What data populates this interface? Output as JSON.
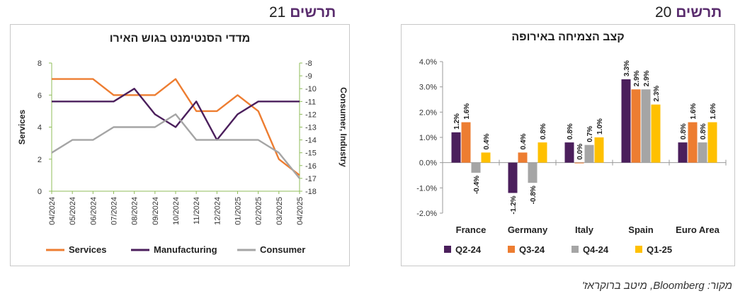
{
  "headers": {
    "left": {
      "label": "תרשים",
      "number": "21"
    },
    "right": {
      "label": "תרשים",
      "number": "20"
    }
  },
  "source": "מקור: Bloomberg, מיטב ברוקראז'",
  "colors": {
    "orange": "#ED7D31",
    "purple": "#4B1F5C",
    "gray": "#A5A5A5",
    "gold": "#FFC000",
    "axis": "#8FBC5A"
  },
  "chart_data": [
    {
      "type": "line",
      "title": "מדדי הסנטימנט בגוש האירו",
      "ylabel": "Services",
      "y2label": "Consumer, Industry",
      "x": [
        "04/2024",
        "05/2024",
        "06/2024",
        "07/2024",
        "08/2024",
        "09/2024",
        "10/2024",
        "11/2024",
        "12/2024",
        "01/2025",
        "02/2025",
        "03/2025",
        "04/2025"
      ],
      "ylim": [
        0,
        8
      ],
      "yticks": [
        "0",
        "2",
        "4",
        "6",
        "8"
      ],
      "y2lim": [
        -18,
        -8
      ],
      "y2ticks": [
        "-8",
        "-9",
        "-10",
        "-11",
        "-12",
        "-13",
        "-14",
        "-15",
        "-16",
        "-17",
        "-18"
      ],
      "legend": "bottom",
      "series": [
        {
          "name": "Services",
          "axis": "left",
          "color": "#ED7D31",
          "values": [
            7,
            7,
            7,
            6,
            6,
            6,
            7,
            5,
            5,
            6,
            5,
            2,
            1
          ]
        },
        {
          "name": "Manufacturing",
          "axis": "right",
          "color": "#4B1F5C",
          "values": [
            -11,
            -11,
            -11,
            -11,
            -10,
            -12,
            -13,
            -11,
            -14,
            -12,
            -11,
            -11,
            -11
          ]
        },
        {
          "name": "Consumer",
          "axis": "right",
          "color": "#A5A5A5",
          "values": [
            -15,
            -14,
            -14,
            -13,
            -13,
            -13,
            -12,
            -14,
            -14,
            -14,
            -14,
            -15,
            -17
          ]
        }
      ]
    },
    {
      "type": "bar",
      "title": "קצב הצמיחה באירופה",
      "categories": [
        "France",
        "Germany",
        "Italy",
        "Spain",
        "Euro Area"
      ],
      "ylim": [
        -2.0,
        4.0
      ],
      "yticks": [
        "-2.0%",
        "-1.0%",
        "0.0%",
        "1.0%",
        "2.0%",
        "3.0%",
        "4.0%"
      ],
      "legend": "bottom",
      "series": [
        {
          "name": "Q2-24",
          "color": "#4B1F5C",
          "values": [
            1.2,
            -1.2,
            0.8,
            3.3,
            0.8
          ],
          "labels": [
            "1.2%",
            "-1.2%",
            "0.8%",
            "3.3%",
            "0.8%"
          ]
        },
        {
          "name": "Q3-24",
          "color": "#ED7D31",
          "values": [
            1.6,
            0.4,
            0.0,
            2.9,
            1.6
          ],
          "labels": [
            "1.6%",
            "0.4%",
            "0.0%",
            "2.9%",
            "1.6%"
          ]
        },
        {
          "name": "Q4-24",
          "color": "#A5A5A5",
          "values": [
            -0.4,
            -0.8,
            0.7,
            2.9,
            0.8
          ],
          "labels": [
            "-0.4%",
            "-0.8%",
            "0.7%",
            "2.9%",
            "0.8%"
          ]
        },
        {
          "name": "Q1-25",
          "color": "#FFC000",
          "values": [
            0.4,
            0.8,
            1.0,
            2.3,
            1.6
          ],
          "labels": [
            "0.4%",
            "0.8%",
            "1.0%",
            "2.3%",
            "1.6%"
          ]
        }
      ]
    }
  ]
}
